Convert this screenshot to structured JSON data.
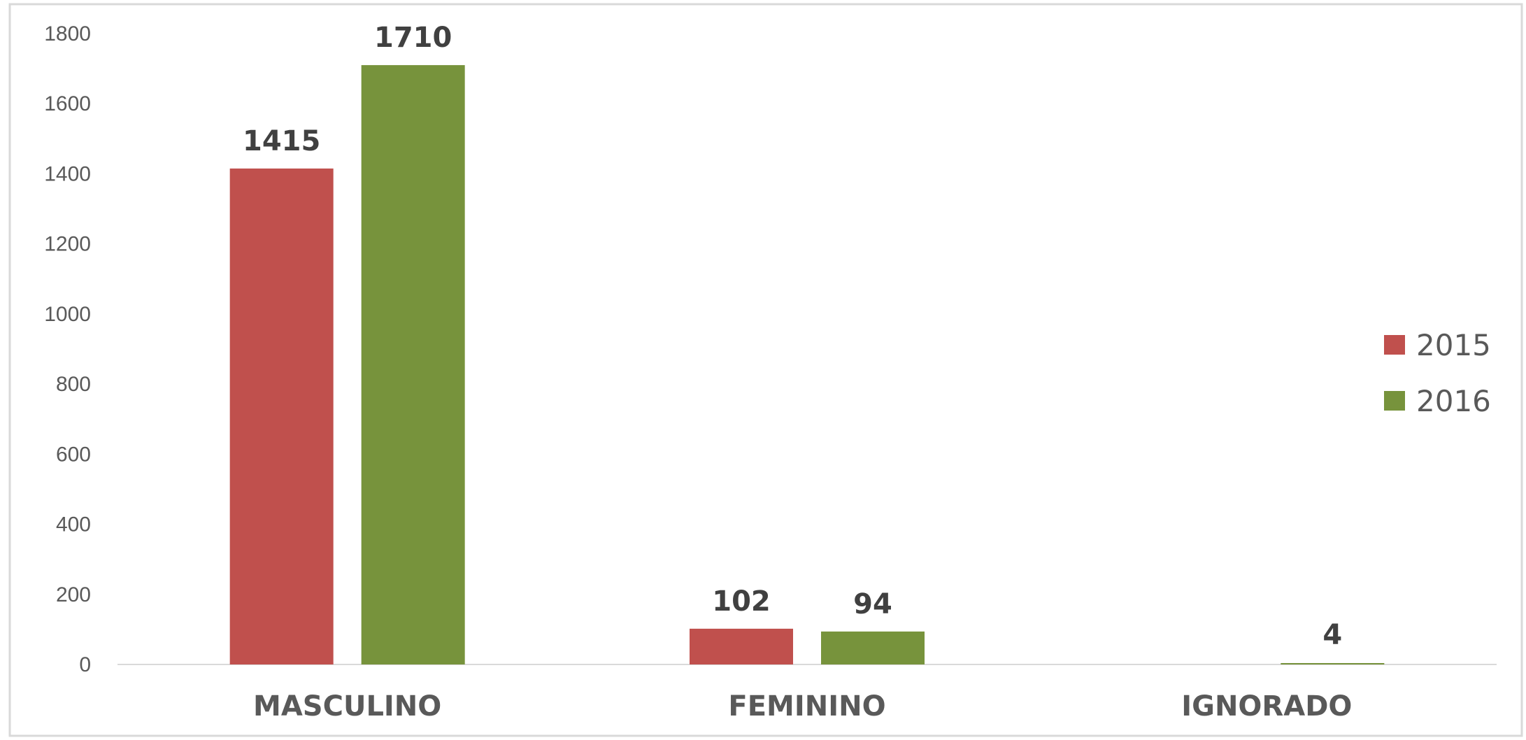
{
  "chart_data": {
    "type": "bar",
    "title": "",
    "xlabel": "",
    "ylabel": "",
    "categories": [
      "MASCULINO",
      "FEMININO",
      "IGNORADO"
    ],
    "series": [
      {
        "name": "2015",
        "color": "#c0504d",
        "values": [
          1415,
          102,
          0
        ]
      },
      {
        "name": "2016",
        "color": "#77933c",
        "values": [
          1710,
          94,
          4
        ]
      }
    ],
    "data_labels": [
      [
        "1415",
        "102",
        null
      ],
      [
        "1710",
        "94",
        "4"
      ]
    ],
    "ylim": [
      0,
      1800
    ],
    "yticks": [
      0,
      200,
      400,
      600,
      800,
      1000,
      1200,
      1400,
      1600,
      1800
    ],
    "grid": false,
    "legend_position": "right"
  }
}
